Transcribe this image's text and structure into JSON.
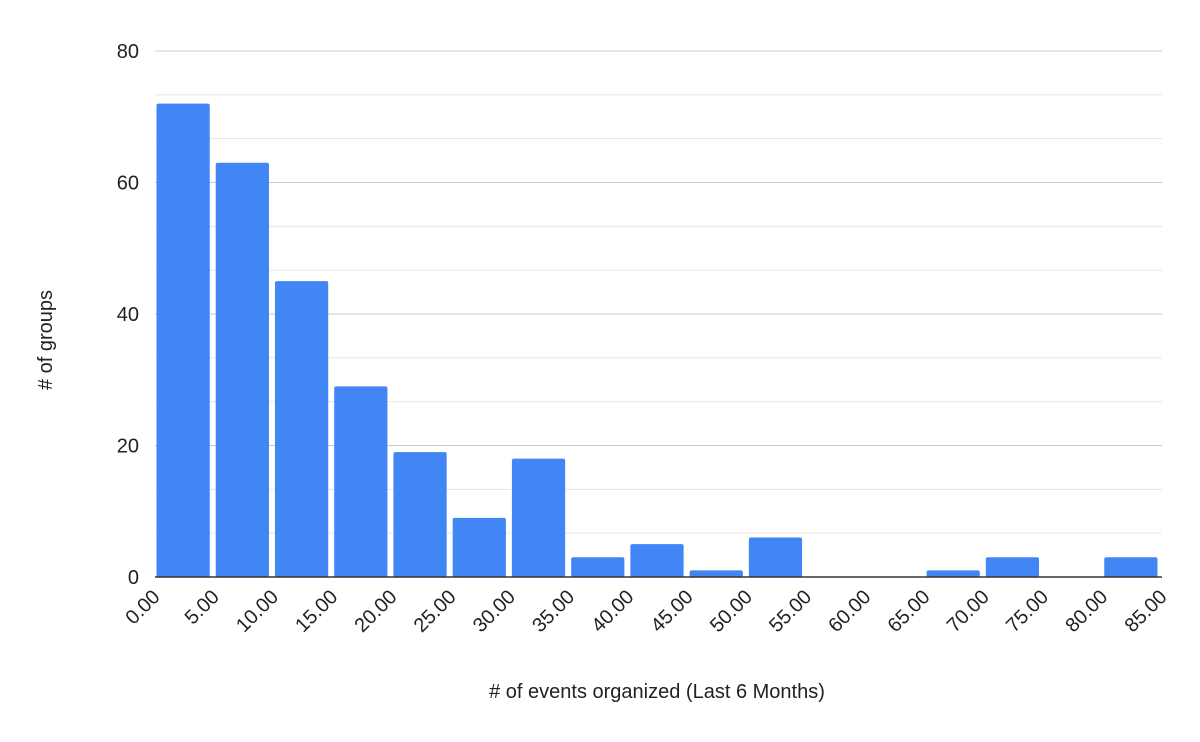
{
  "chart_data": {
    "type": "histogram",
    "x_label": "# of events organized (Last 6 Months)",
    "y_label": "# of groups",
    "bins": [
      0,
      5,
      10,
      15,
      20,
      25,
      30,
      35,
      40,
      45,
      50,
      55,
      60,
      65,
      70,
      75,
      80,
      85
    ],
    "values": [
      72,
      63,
      45,
      29,
      19,
      9,
      18,
      3,
      5,
      1,
      6,
      0,
      0,
      1,
      3,
      0,
      3
    ],
    "color": "#4285f4",
    "xlim": [
      0,
      85
    ],
    "xticks": [
      {
        "value": 0,
        "label": "0.00"
      },
      {
        "value": 5,
        "label": "5.00"
      },
      {
        "value": 10,
        "label": "10.00"
      },
      {
        "value": 15,
        "label": "15.00"
      },
      {
        "value": 20,
        "label": "20.00"
      },
      {
        "value": 25,
        "label": "25.00"
      },
      {
        "value": 30,
        "label": "30.00"
      },
      {
        "value": 35,
        "label": "35.00"
      },
      {
        "value": 40,
        "label": "40.00"
      },
      {
        "value": 45,
        "label": "45.00"
      },
      {
        "value": 50,
        "label": "50.00"
      },
      {
        "value": 55,
        "label": "55.00"
      },
      {
        "value": 60,
        "label": "60.00"
      },
      {
        "value": 65,
        "label": "65.00"
      },
      {
        "value": 70,
        "label": "70.00"
      },
      {
        "value": 75,
        "label": "75.00"
      },
      {
        "value": 80,
        "label": "80.00"
      },
      {
        "value": 85,
        "label": "85.00"
      }
    ],
    "ylim": [
      0,
      80
    ],
    "yticks": [
      0,
      20,
      40,
      60,
      80
    ],
    "grid": true
  }
}
